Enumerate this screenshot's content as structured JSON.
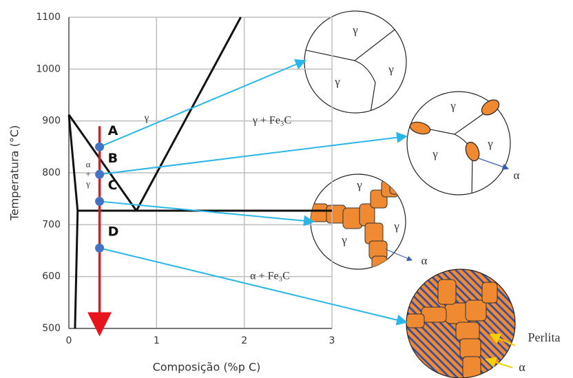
{
  "chart_data": {
    "type": "phase",
    "xlabel": "Composição (%p C)",
    "ylabel": "Temperatura (°C)",
    "xlim": [
      0,
      3
    ],
    "ylim": [
      500,
      1100
    ],
    "xticks": [
      0,
      1,
      2,
      3
    ],
    "yticks": [
      500,
      600,
      700,
      800,
      900,
      1000,
      1100
    ],
    "grid": true,
    "boundaries": [
      {
        "x": [
          0,
          0.77
        ],
        "y": [
          912,
          727
        ]
      },
      {
        "x": [
          0,
          0.1,
          0.07
        ],
        "y": [
          912,
          727,
          500
        ]
      },
      {
        "x": [
          0.77,
          1.96
        ],
        "y": [
          727,
          1100
        ]
      },
      {
        "x": [
          0.1,
          3
        ],
        "y": [
          727,
          727
        ]
      }
    ],
    "cooling_path": {
      "x": [
        0.35,
        0.35
      ],
      "y": [
        890,
        500
      ],
      "color": "#e8141b"
    },
    "points": [
      {
        "label": "A",
        "x": 0.35,
        "y": 850
      },
      {
        "label": "B",
        "x": 0.35,
        "y": 797
      },
      {
        "label": "C",
        "x": 0.35,
        "y": 745
      },
      {
        "label": "D",
        "x": 0.35,
        "y": 655
      }
    ],
    "point_color": "#4472c4",
    "regions": [
      "γ",
      "γ + Fe₃C",
      "α",
      "+",
      "γ",
      "α + Fe₃C"
    ]
  },
  "micrographs": [
    {
      "labels": [
        "γ",
        "γ",
        "γ"
      ]
    },
    {
      "labels": [
        "γ",
        "γ",
        "γ",
        "α"
      ]
    },
    {
      "labels": [
        "γ",
        "γ",
        "γ",
        "α"
      ]
    },
    {
      "labels": [
        "Perlita",
        "α"
      ]
    }
  ]
}
